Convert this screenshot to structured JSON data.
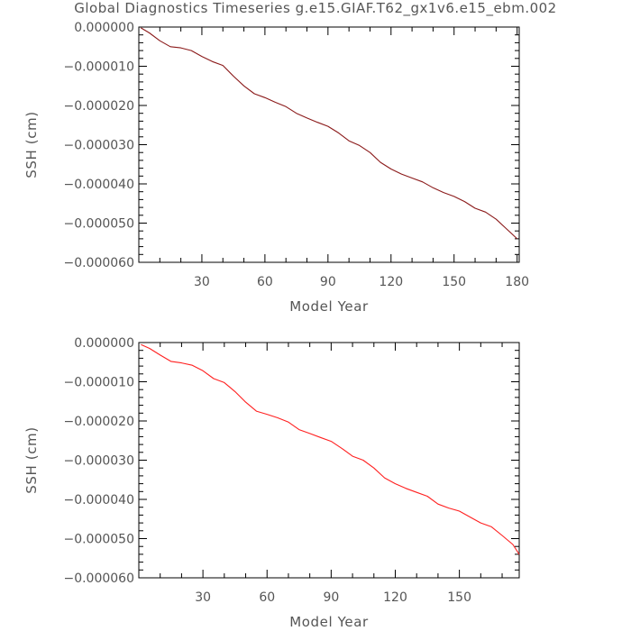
{
  "title": "Global Diagnostics Timeseries g.e15.GIAF.T62_gx1v6.e15_ebm.002",
  "chart_data": [
    {
      "type": "line",
      "xlabel": "Model Year",
      "ylabel": "SSH (cm)",
      "xlim": [
        0,
        181
      ],
      "ylim": [
        -6e-05,
        0
      ],
      "xticks": [
        30,
        60,
        90,
        120,
        150,
        180
      ],
      "xtick_labels": [
        "30",
        "60",
        "90",
        "120",
        "150",
        "180"
      ],
      "yticks": [
        0,
        -1e-05,
        -2e-05,
        -3e-05,
        -4e-05,
        -5e-05,
        -6e-05
      ],
      "ytick_labels": [
        "0.000000",
        "−0.000010",
        "−0.000020",
        "−0.000030",
        "−0.000040",
        "−0.000050",
        "−0.000060"
      ],
      "grid": false,
      "series": [
        {
          "color": "#8b1a1a",
          "x": [
            1,
            5,
            10,
            15,
            20,
            25,
            30,
            35,
            40,
            45,
            50,
            55,
            60,
            65,
            70,
            75,
            80,
            85,
            90,
            95,
            100,
            105,
            110,
            115,
            120,
            125,
            130,
            135,
            140,
            145,
            150,
            155,
            160,
            165,
            170,
            175,
            180
          ],
          "y": [
            -2e-07,
            -1.5e-06,
            -3.5e-06,
            -5e-06,
            -5.3e-06,
            -6e-06,
            -7.5e-06,
            -8.8e-06,
            -9.8e-06,
            -1.25e-05,
            -1.5e-05,
            -1.7e-05,
            -1.8e-05,
            -1.92e-05,
            -2.03e-05,
            -2.2e-05,
            -2.32e-05,
            -2.43e-05,
            -2.53e-05,
            -2.7e-05,
            -2.9e-05,
            -3.02e-05,
            -3.2e-05,
            -3.45e-05,
            -3.62e-05,
            -3.75e-05,
            -3.85e-05,
            -3.95e-05,
            -4.1e-05,
            -4.22e-05,
            -4.32e-05,
            -4.45e-05,
            -4.62e-05,
            -4.72e-05,
            -4.9e-05,
            -5.15e-05,
            -5.4e-05
          ]
        }
      ]
    },
    {
      "type": "line",
      "xlabel": "Model Year",
      "ylabel": "SSH (cm)",
      "xlim": [
        0,
        178
      ],
      "ylim": [
        -6e-05,
        0
      ],
      "xticks": [
        30,
        60,
        90,
        120,
        150
      ],
      "xtick_labels": [
        "30",
        "60",
        "90",
        "120",
        "150"
      ],
      "yticks": [
        0,
        -1e-05,
        -2e-05,
        -3e-05,
        -4e-05,
        -5e-05,
        -6e-05
      ],
      "ytick_labels": [
        "0.000000",
        "−0.000010",
        "−0.000020",
        "−0.000030",
        "−0.000040",
        "−0.000050",
        "−0.000060"
      ],
      "grid": false,
      "series": [
        {
          "color": "#ff2020",
          "x": [
            1,
            5,
            10,
            15,
            20,
            25,
            30,
            35,
            40,
            45,
            50,
            55,
            60,
            65,
            70,
            75,
            80,
            85,
            90,
            95,
            100,
            105,
            110,
            115,
            120,
            125,
            130,
            135,
            140,
            145,
            150,
            155,
            160,
            165,
            170,
            175,
            178
          ],
          "y": [
            -5e-07,
            -1.5e-06,
            -3.2e-06,
            -4.8e-06,
            -5.2e-06,
            -5.8e-06,
            -7.2e-06,
            -9.2e-06,
            -1.02e-05,
            -1.25e-05,
            -1.52e-05,
            -1.75e-05,
            -1.83e-05,
            -1.92e-05,
            -2.03e-05,
            -2.22e-05,
            -2.32e-05,
            -2.42e-05,
            -2.52e-05,
            -2.7e-05,
            -2.9e-05,
            -3e-05,
            -3.2e-05,
            -3.45e-05,
            -3.6e-05,
            -3.72e-05,
            -3.82e-05,
            -3.92e-05,
            -4.12e-05,
            -4.22e-05,
            -4.3e-05,
            -4.45e-05,
            -4.6e-05,
            -4.7e-05,
            -4.92e-05,
            -5.15e-05,
            -5.4e-05
          ]
        }
      ]
    }
  ]
}
